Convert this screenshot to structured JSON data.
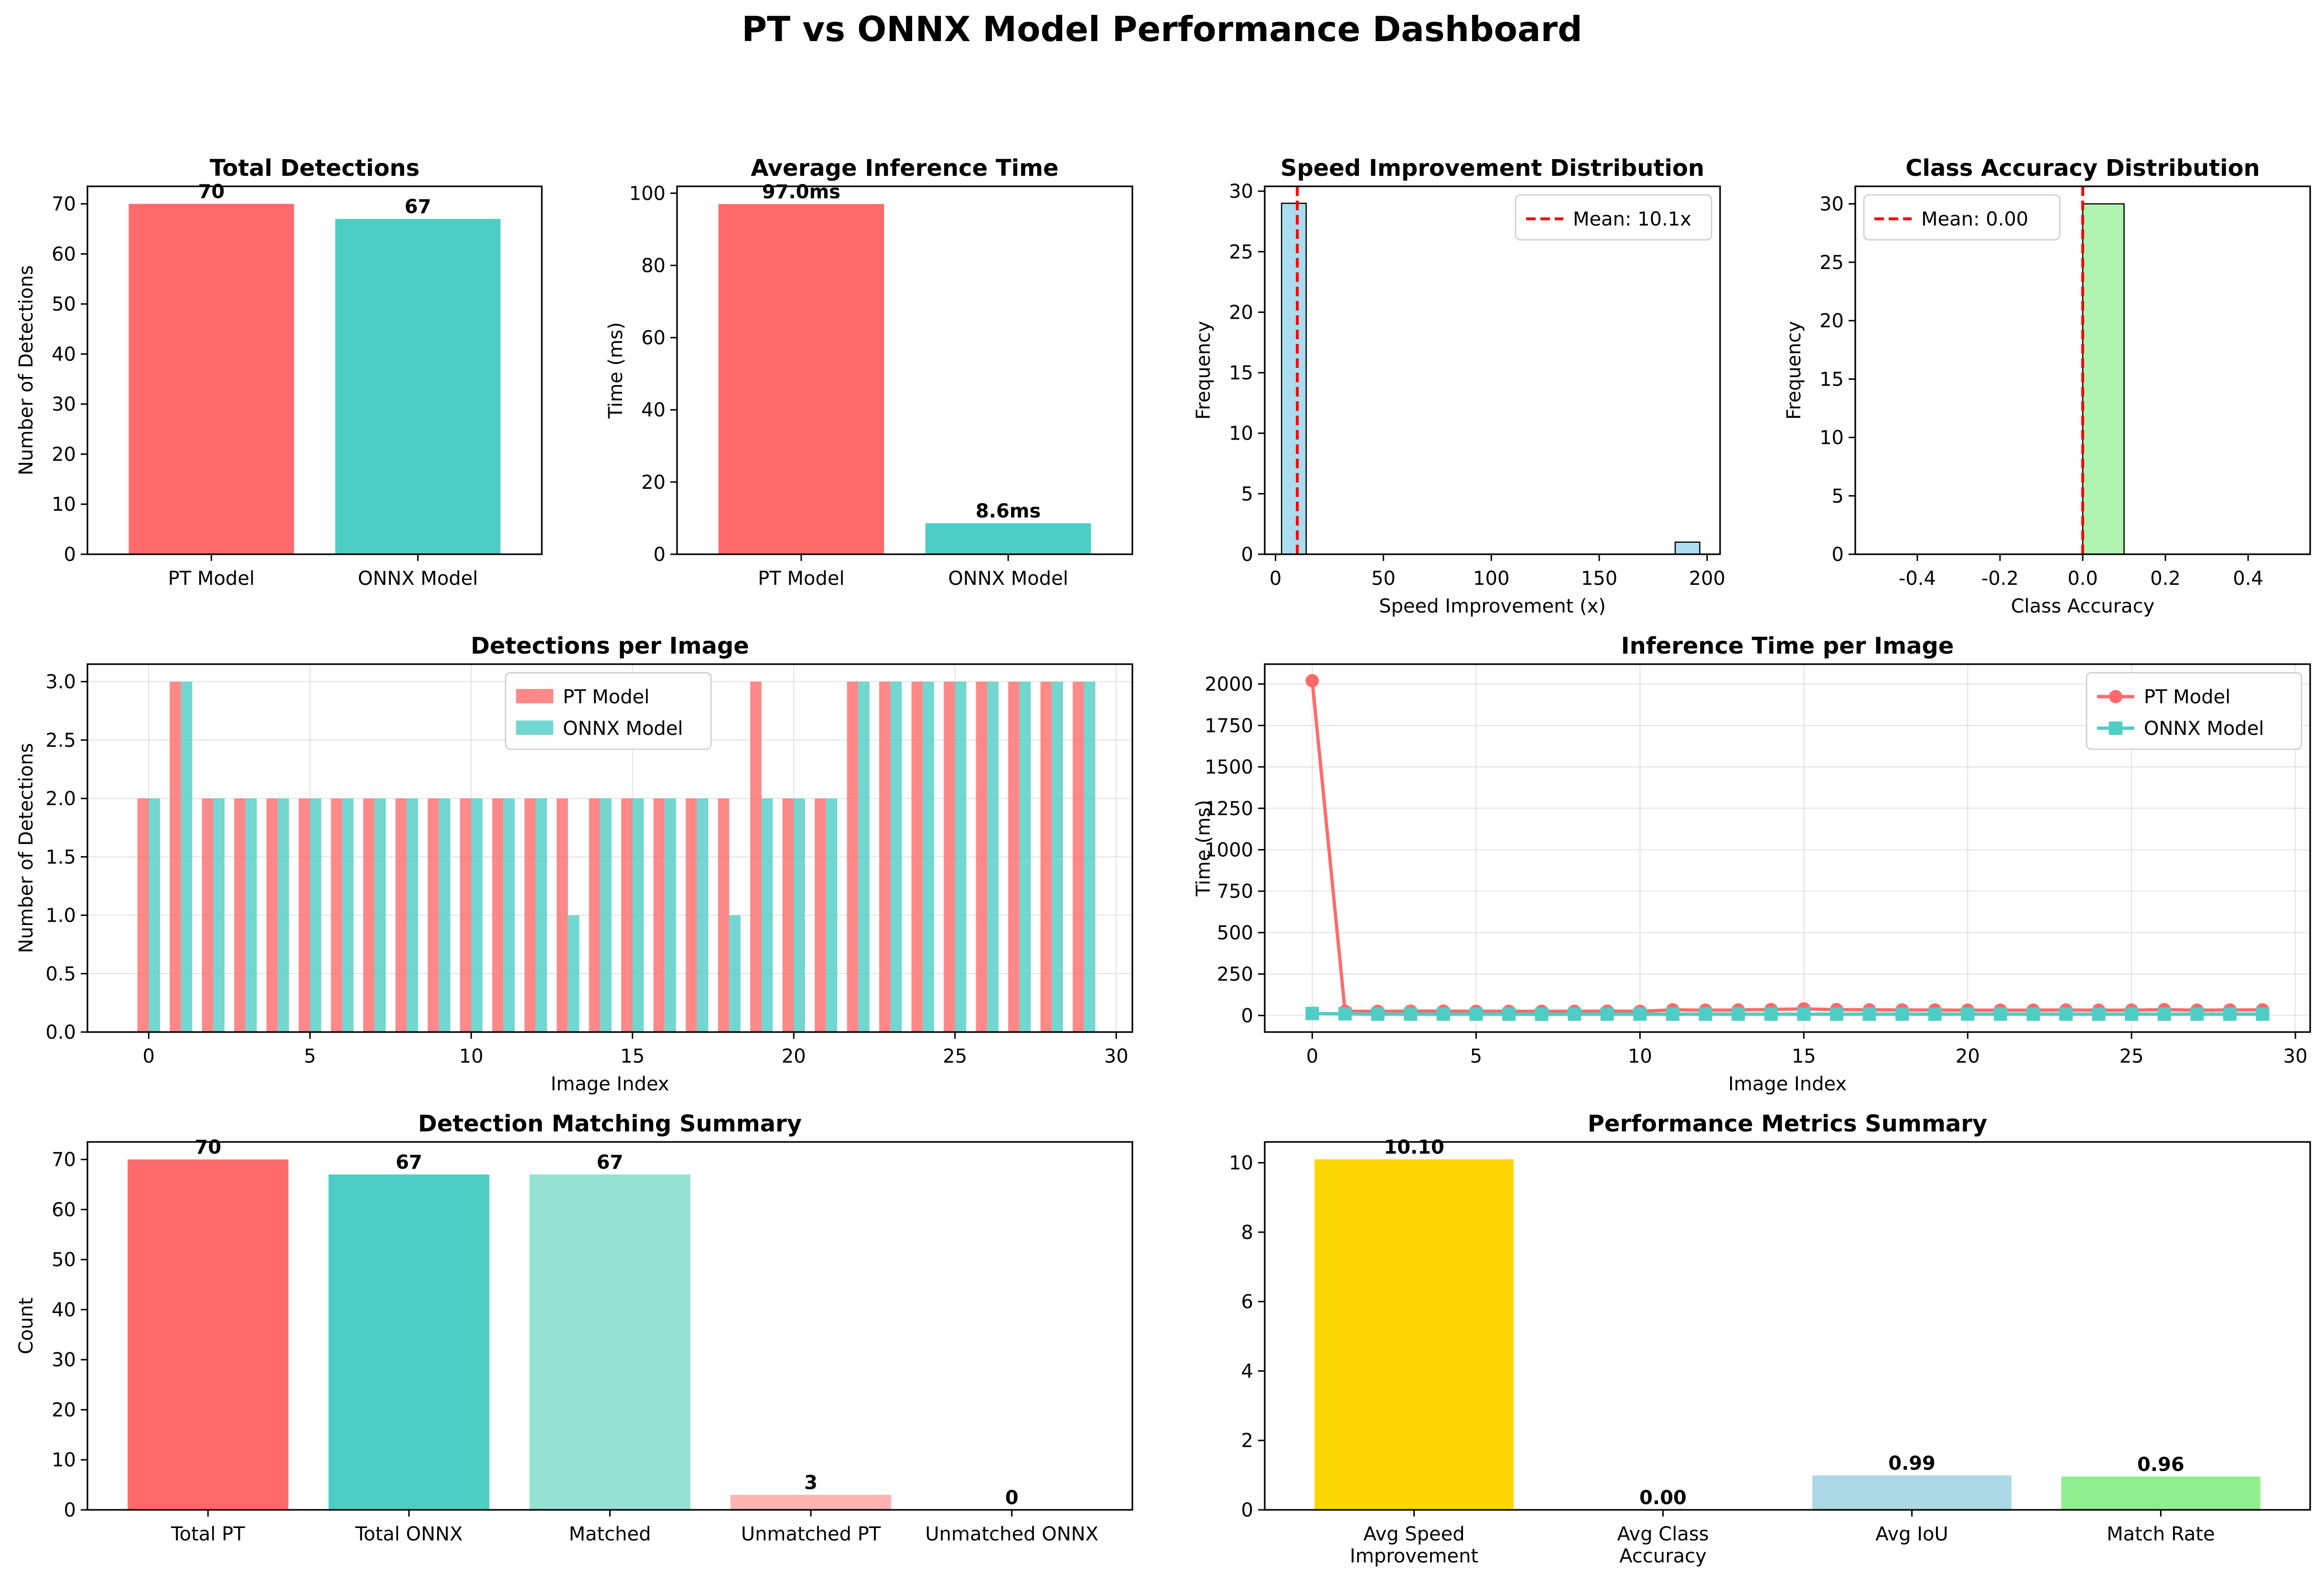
{
  "title": "PT vs ONNX Model Performance Dashboard",
  "colors": {
    "pt": "#FF6B6B",
    "onnx": "#4ECDC4",
    "matched": "#95E1D3",
    "unmatched_pt": "#FFB3B3",
    "speed_hist": "#87CEEB",
    "acc_hist": "#90EE90",
    "gold": "#FFD700",
    "lightblue": "#ADD8E6",
    "lightgreen": "#90EE90",
    "mean_line": "#FF0000"
  },
  "chart_data": [
    {
      "id": "total_detections",
      "type": "bar",
      "title": "Total Detections",
      "xlabel": "",
      "ylabel": "Number of Detections",
      "categories": [
        "PT Model",
        "ONNX Model"
      ],
      "values": [
        70,
        67
      ],
      "value_labels": [
        "70",
        "67"
      ],
      "ylim": [
        0,
        73.5
      ],
      "yticks": [
        0,
        10,
        20,
        30,
        40,
        50,
        60,
        70
      ],
      "grid": false
    },
    {
      "id": "avg_inference_time",
      "type": "bar",
      "title": "Average Inference Time",
      "xlabel": "",
      "ylabel": "Time (ms)",
      "categories": [
        "PT Model",
        "ONNX Model"
      ],
      "values": [
        97.0,
        8.6
      ],
      "value_labels": [
        "97.0ms",
        "8.6ms"
      ],
      "ylim": [
        0,
        101.9
      ],
      "yticks": [
        0,
        20,
        40,
        60,
        80,
        100
      ],
      "grid": false
    },
    {
      "id": "speed_distribution",
      "type": "histogram",
      "title": "Speed Improvement Distribution",
      "xlabel": "Speed Improvement (x)",
      "ylabel": "Frequency",
      "bins": [
        {
          "x0": 2.8,
          "x1": 14.2,
          "count": 29
        },
        {
          "x0": 185.2,
          "x1": 196.6,
          "count": 1
        }
      ],
      "mean": 10.1,
      "legend": "Mean: 10.1x",
      "legend_position": "top-right",
      "xlim": [
        -5,
        206
      ],
      "ylim": [
        0,
        30.4
      ],
      "xticks": [
        0,
        50,
        100,
        150,
        200
      ],
      "yticks": [
        0,
        5,
        10,
        15,
        20,
        25,
        30
      ],
      "grid": false
    },
    {
      "id": "class_accuracy_distribution",
      "type": "histogram",
      "title": "Class Accuracy Distribution",
      "xlabel": "Class Accuracy",
      "ylabel": "Frequency",
      "bins": [
        {
          "x0": 0.0,
          "x1": 0.1,
          "count": 30
        }
      ],
      "mean": 0.0,
      "legend": "Mean: 0.00",
      "legend_position": "top-left",
      "xlim": [
        -0.55,
        0.55
      ],
      "ylim": [
        0,
        31.5
      ],
      "xticks": [
        -0.4,
        -0.2,
        0.0,
        0.2,
        0.4
      ],
      "xtick_labels": [
        "-0.4",
        "-0.2",
        "0.0",
        "0.2",
        "0.4"
      ],
      "yticks": [
        0,
        5,
        10,
        15,
        20,
        25,
        30
      ],
      "grid": false
    },
    {
      "id": "detections_per_image",
      "type": "bar",
      "title": "Detections per Image",
      "xlabel": "Image Index",
      "ylabel": "Number of Detections",
      "x": [
        0,
        1,
        2,
        3,
        4,
        5,
        6,
        7,
        8,
        9,
        10,
        11,
        12,
        13,
        14,
        15,
        16,
        17,
        18,
        19,
        20,
        21,
        22,
        23,
        24,
        25,
        26,
        27,
        28,
        29
      ],
      "series": [
        {
          "name": "PT Model",
          "values": [
            2,
            3,
            2,
            2,
            2,
            2,
            2,
            2,
            2,
            2,
            2,
            2,
            2,
            2,
            2,
            2,
            2,
            2,
            2,
            3,
            2,
            2,
            3,
            3,
            3,
            3,
            3,
            3,
            3,
            3
          ]
        },
        {
          "name": "ONNX Model",
          "values": [
            2,
            3,
            2,
            2,
            2,
            2,
            2,
            2,
            2,
            2,
            2,
            2,
            2,
            1,
            2,
            2,
            2,
            2,
            1,
            2,
            2,
            2,
            3,
            3,
            3,
            3,
            3,
            3,
            3,
            3
          ]
        }
      ],
      "legend_position": "upper-center",
      "xlim": [
        -1.9,
        30.5
      ],
      "ylim": [
        0,
        3.15
      ],
      "xticks": [
        0,
        5,
        10,
        15,
        20,
        25,
        30
      ],
      "yticks": [
        0.0,
        0.5,
        1.0,
        1.5,
        2.0,
        2.5,
        3.0
      ],
      "ytick_labels": [
        "0.0",
        "0.5",
        "1.0",
        "1.5",
        "2.0",
        "2.5",
        "3.0"
      ],
      "grid": true
    },
    {
      "id": "inference_time_per_image",
      "type": "line",
      "title": "Inference Time per Image",
      "xlabel": "Image Index",
      "ylabel": "Time (ms)",
      "x": [
        0,
        1,
        2,
        3,
        4,
        5,
        6,
        7,
        8,
        9,
        10,
        11,
        12,
        13,
        14,
        15,
        16,
        17,
        18,
        19,
        20,
        21,
        22,
        23,
        24,
        25,
        26,
        27,
        28,
        29
      ],
      "series": [
        {
          "name": "PT Model",
          "marker": "circle",
          "values": [
            2020,
            25,
            25,
            26,
            26,
            25,
            25,
            25,
            25,
            26,
            25,
            34,
            32,
            33,
            36,
            40,
            35,
            34,
            33,
            33,
            32,
            32,
            32,
            33,
            32,
            32,
            35,
            32,
            33,
            34
          ]
        },
        {
          "name": "ONNX Model",
          "marker": "square",
          "values": [
            12,
            10,
            8,
            8,
            8,
            8,
            8,
            7,
            8,
            8,
            8,
            8,
            8,
            8,
            8,
            8,
            8,
            8,
            8,
            8,
            8,
            8,
            8,
            8,
            8,
            8,
            8,
            8,
            8,
            8
          ]
        }
      ],
      "legend_position": "top-right",
      "xlim": [
        -1.45,
        30.45
      ],
      "ylim": [
        -100,
        2120
      ],
      "xticks": [
        0,
        5,
        10,
        15,
        20,
        25,
        30
      ],
      "yticks": [
        0,
        250,
        500,
        750,
        1000,
        1250,
        1500,
        1750,
        2000
      ],
      "grid": true
    },
    {
      "id": "matching_summary",
      "type": "bar",
      "title": "Detection Matching Summary",
      "xlabel": "",
      "ylabel": "Count",
      "categories": [
        "Total PT",
        "Total ONNX",
        "Matched",
        "Unmatched PT",
        "Unmatched ONNX"
      ],
      "values": [
        70,
        67,
        67,
        3,
        0
      ],
      "value_labels": [
        "70",
        "67",
        "67",
        "3",
        "0"
      ],
      "ylim": [
        0,
        73.5
      ],
      "yticks": [
        0,
        10,
        20,
        30,
        40,
        50,
        60,
        70
      ],
      "grid": false
    },
    {
      "id": "performance_metrics",
      "type": "bar",
      "title": "Performance Metrics Summary",
      "xlabel": "",
      "ylabel": "",
      "categories": [
        [
          "Avg Speed",
          "Improvement"
        ],
        [
          "Avg Class",
          "Accuracy"
        ],
        [
          "Avg IoU"
        ],
        [
          "Match Rate"
        ]
      ],
      "values": [
        10.1,
        0.0,
        0.99,
        0.96
      ],
      "value_labels": [
        "10.10",
        "0.00",
        "0.99",
        "0.96"
      ],
      "ylim": [
        0,
        10.6
      ],
      "yticks": [
        0,
        2,
        4,
        6,
        8,
        10
      ],
      "grid": false
    }
  ]
}
